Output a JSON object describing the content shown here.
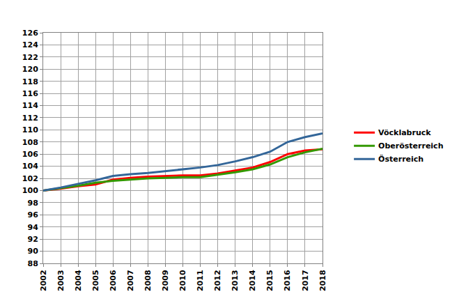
{
  "chart_data": {
    "type": "line",
    "x": [
      2002,
      2003,
      2004,
      2005,
      2006,
      2007,
      2008,
      2009,
      2010,
      2011,
      2012,
      2013,
      2014,
      2015,
      2016,
      2017,
      2018
    ],
    "series": [
      {
        "name": "Vöcklabruck",
        "color": "#ff0000",
        "values": [
          100,
          100.3,
          100.7,
          101.0,
          101.8,
          102.1,
          102.3,
          102.4,
          102.5,
          102.5,
          102.8,
          103.3,
          103.8,
          104.7,
          106.0,
          106.6,
          106.8
        ]
      },
      {
        "name": "Oberösterreich",
        "color": "#339900",
        "values": [
          100,
          100.4,
          100.8,
          101.3,
          101.6,
          101.8,
          102.0,
          102.1,
          102.2,
          102.2,
          102.6,
          103.0,
          103.5,
          104.3,
          105.5,
          106.3,
          106.9
        ]
      },
      {
        "name": "Österreich",
        "color": "#336699",
        "values": [
          100,
          100.5,
          101.1,
          101.7,
          102.4,
          102.7,
          102.9,
          103.2,
          103.5,
          103.8,
          104.2,
          104.8,
          105.5,
          106.4,
          108.0,
          108.8,
          109.4
        ]
      }
    ],
    "xlim": [
      2002,
      2018
    ],
    "xticks": [
      2002,
      2003,
      2004,
      2005,
      2006,
      2007,
      2008,
      2009,
      2010,
      2011,
      2012,
      2013,
      2014,
      2015,
      2016,
      2017,
      2018
    ],
    "ylim": [
      88,
      126
    ],
    "yticks": [
      88,
      90,
      92,
      94,
      96,
      98,
      100,
      102,
      104,
      106,
      108,
      110,
      112,
      114,
      116,
      118,
      120,
      122,
      124,
      126
    ],
    "grid": true,
    "legend": "right"
  }
}
